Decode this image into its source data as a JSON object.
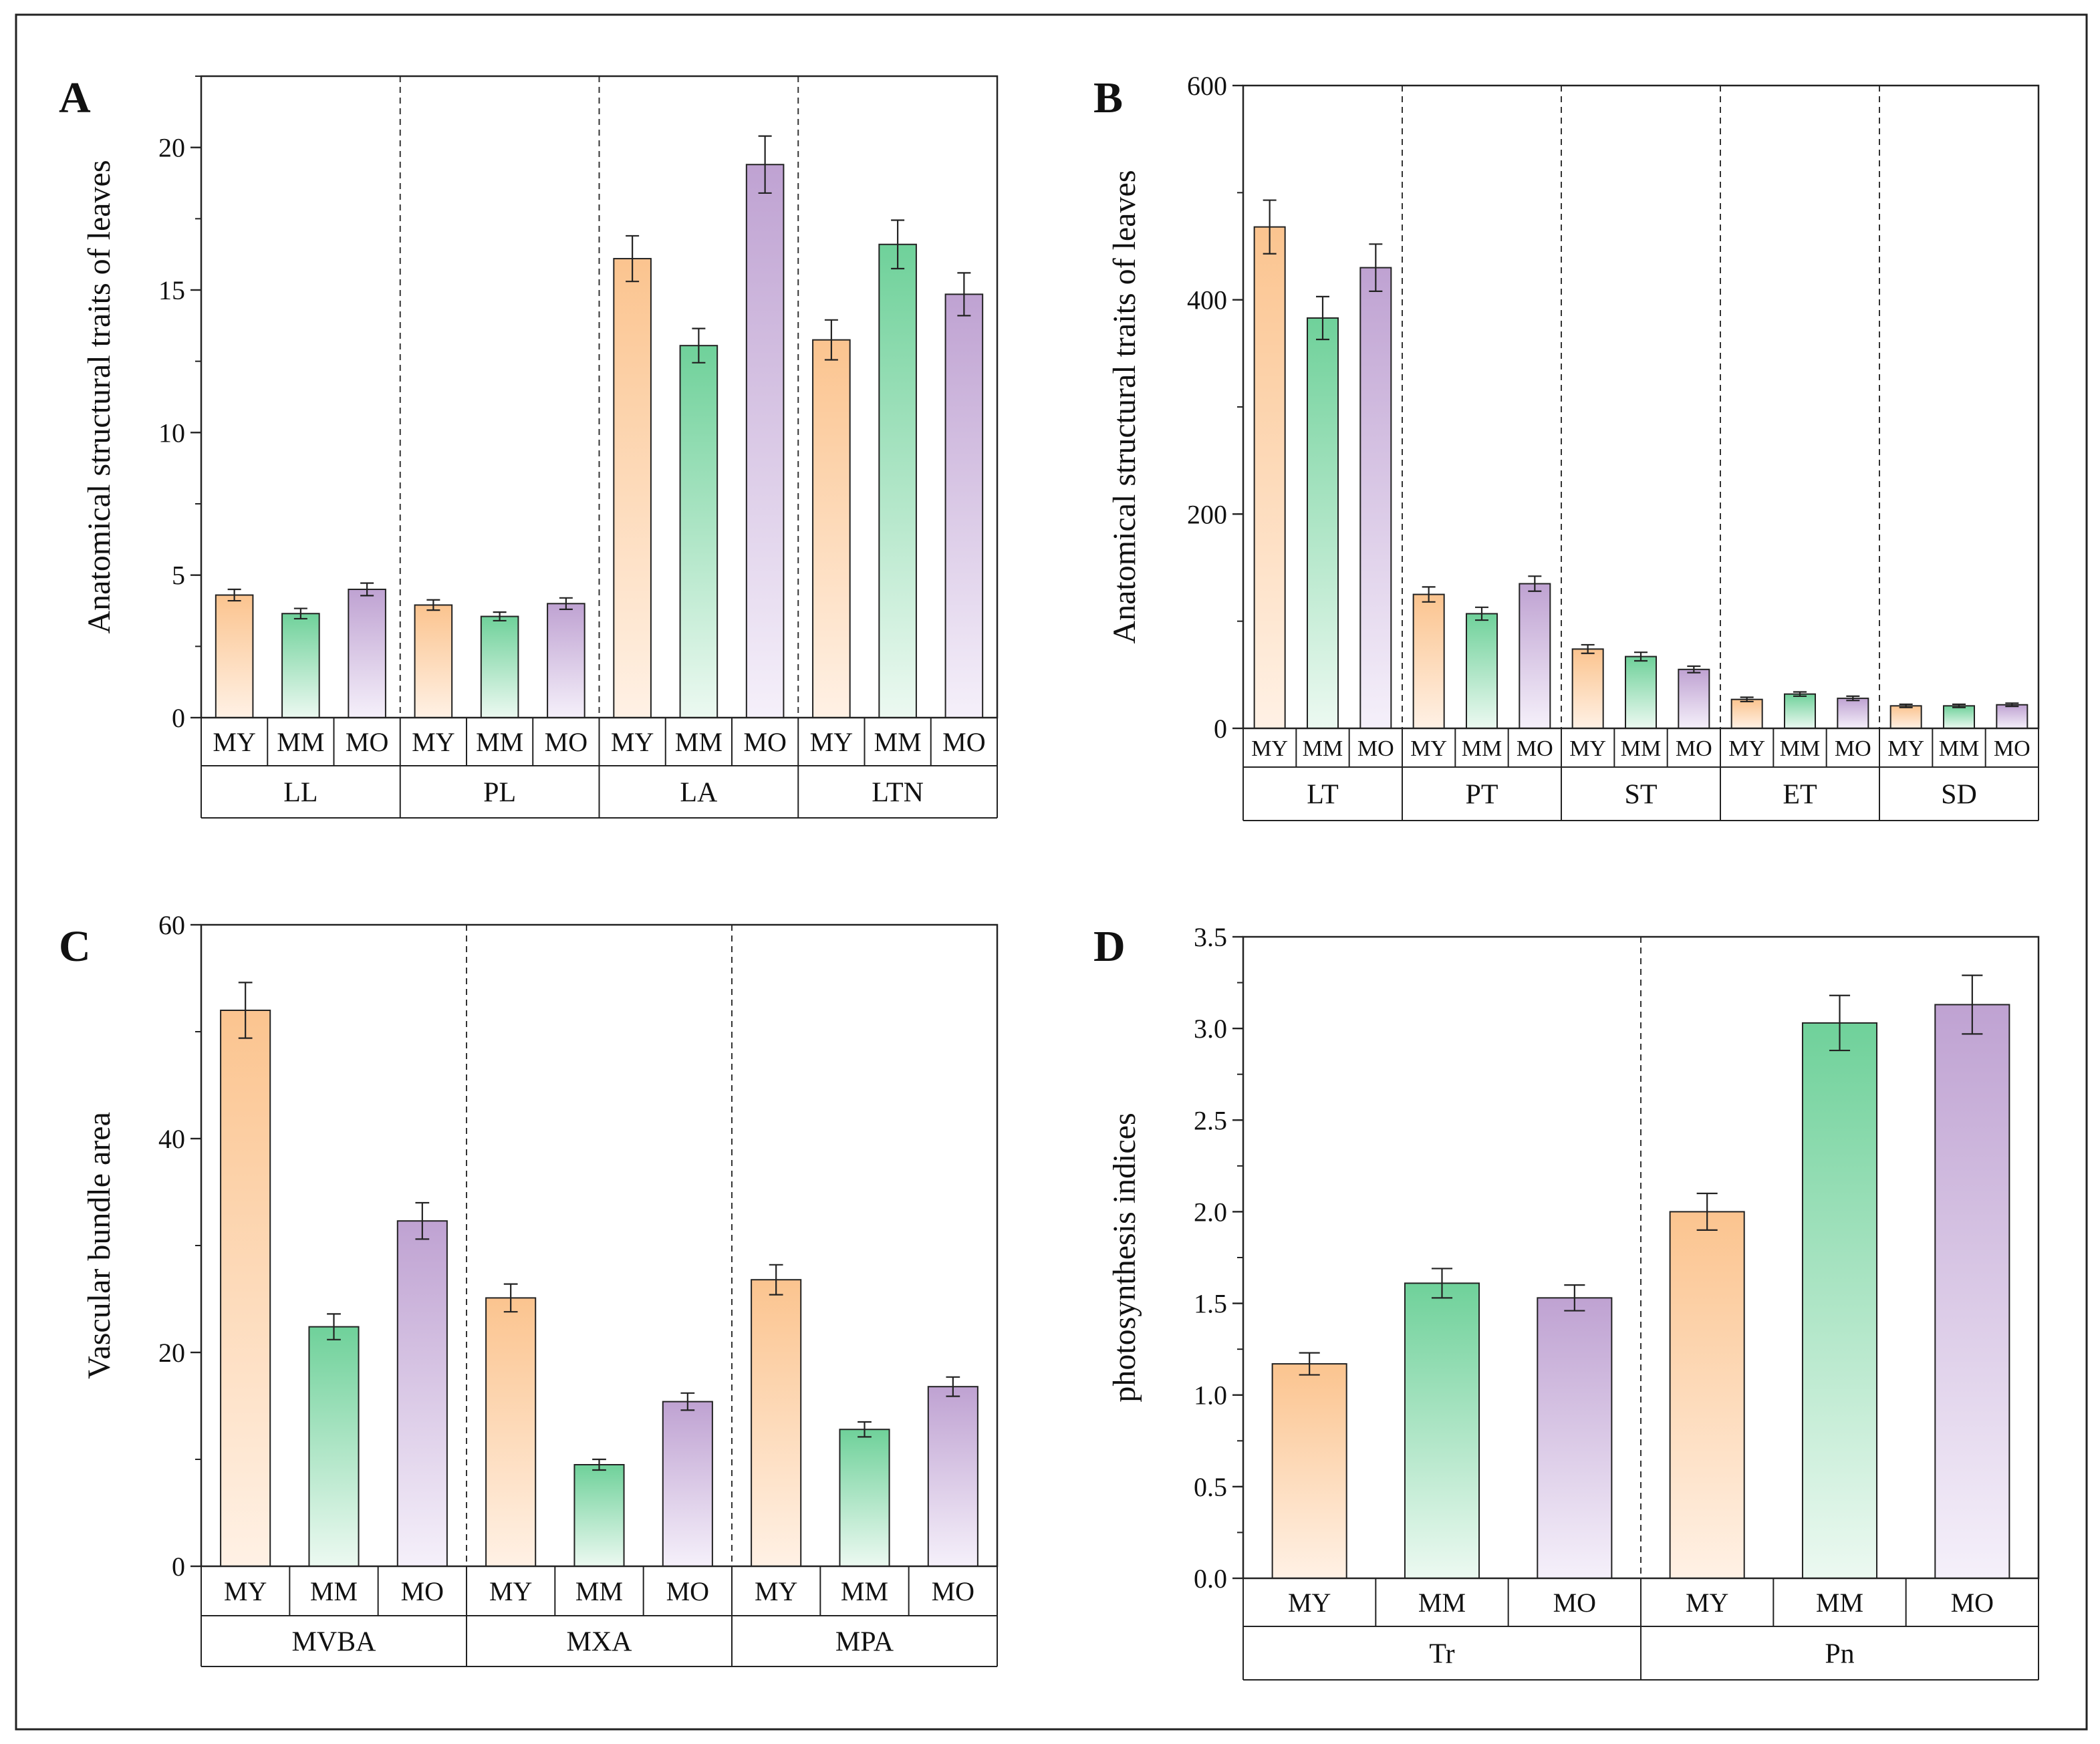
{
  "colors": {
    "MY_top": "#fbc48f",
    "MY_bottom": "#fff1e5",
    "MM_top": "#6fd19a",
    "MM_bottom": "#ecf9f1",
    "MO_top": "#bfa2d2",
    "MO_bottom": "#f5f0fa",
    "frame": "#222222"
  },
  "chart_data": [
    {
      "panel_label": "A",
      "type": "bar",
      "ylabel": "Anatomical structural traits of leaves",
      "ylim": [
        0,
        22.5
      ],
      "yticks": [
        0,
        5,
        10,
        15,
        20
      ],
      "ytick_labels": [
        "0",
        "5",
        "10",
        "15",
        "20"
      ],
      "minor_step": 2.5,
      "levels": [
        "MY",
        "MM",
        "MO"
      ],
      "groups": [
        {
          "label": "LL",
          "values": [
            4.3,
            3.65,
            4.5
          ],
          "errors": [
            0.2,
            0.18,
            0.22
          ]
        },
        {
          "label": "PL",
          "values": [
            3.95,
            3.55,
            4.0
          ],
          "errors": [
            0.18,
            0.15,
            0.2
          ]
        },
        {
          "label": "LA",
          "values": [
            16.1,
            13.05,
            19.4
          ],
          "errors": [
            0.8,
            0.6,
            1.0
          ]
        },
        {
          "label": "LTN",
          "values": [
            13.25,
            16.6,
            14.85
          ],
          "errors": [
            0.7,
            0.85,
            0.75
          ]
        }
      ]
    },
    {
      "panel_label": "B",
      "type": "bar",
      "ylabel": "Anatomical structural traits of leaves",
      "ylim": [
        0,
        600
      ],
      "yticks": [
        0,
        200,
        400,
        600
      ],
      "ytick_labels": [
        "0",
        "200",
        "400",
        "600"
      ],
      "minor_step": 100,
      "levels": [
        "MY",
        "MM",
        "MO"
      ],
      "groups": [
        {
          "label": "LT",
          "values": [
            468,
            383,
            430
          ],
          "errors": [
            25,
            20,
            22
          ]
        },
        {
          "label": "PT",
          "values": [
            125,
            107,
            135
          ],
          "errors": [
            7,
            6,
            7
          ]
        },
        {
          "label": "ST",
          "values": [
            74,
            67,
            55
          ],
          "errors": [
            4,
            4,
            3
          ]
        },
        {
          "label": "ET",
          "values": [
            27,
            32,
            28
          ],
          "errors": [
            2,
            2,
            2
          ]
        },
        {
          "label": "SD",
          "values": [
            21,
            21,
            22
          ],
          "errors": [
            1.5,
            1.5,
            1.5
          ]
        }
      ]
    },
    {
      "panel_label": "C",
      "type": "bar",
      "ylabel": "Vascular bundle area",
      "ylim": [
        0,
        60
      ],
      "yticks": [
        0,
        20,
        40,
        60
      ],
      "ytick_labels": [
        "0",
        "20",
        "40",
        "60"
      ],
      "minor_step": 10,
      "levels": [
        "MY",
        "MM",
        "MO"
      ],
      "groups": [
        {
          "label": "MVBA",
          "values": [
            52.0,
            22.4,
            32.3
          ],
          "errors": [
            2.6,
            1.2,
            1.7
          ]
        },
        {
          "label": "MXA",
          "values": [
            25.1,
            9.5,
            15.4
          ],
          "errors": [
            1.3,
            0.5,
            0.8
          ]
        },
        {
          "label": "MPA",
          "values": [
            26.8,
            12.8,
            16.8
          ],
          "errors": [
            1.4,
            0.7,
            0.9
          ]
        }
      ]
    },
    {
      "panel_label": "D",
      "type": "bar",
      "ylabel": "photosynthesis indices",
      "ylim": [
        0,
        3.5
      ],
      "yticks": [
        0,
        0.5,
        1.0,
        1.5,
        2.0,
        2.5,
        3.0,
        3.5
      ],
      "ytick_labels": [
        "0.0",
        "0.5",
        "1.0",
        "1.5",
        "2.0",
        "2.5",
        "3.0",
        "3.5"
      ],
      "minor_step": 0.25,
      "levels": [
        "MY",
        "MM",
        "MO"
      ],
      "groups": [
        {
          "label": "Tr",
          "values": [
            1.17,
            1.61,
            1.53
          ],
          "errors": [
            0.06,
            0.08,
            0.07
          ]
        },
        {
          "label": "Pn",
          "values": [
            2.0,
            3.03,
            3.13
          ],
          "errors": [
            0.1,
            0.15,
            0.16
          ]
        }
      ]
    }
  ]
}
